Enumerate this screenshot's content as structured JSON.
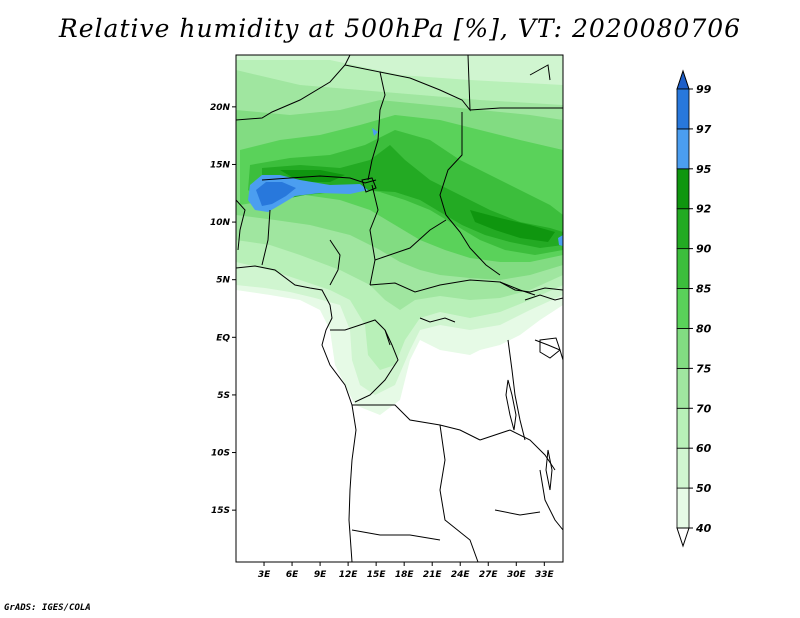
{
  "title": "Relative humidity at 500hPa [%], VT: 2020080706",
  "credit": "GrADS: IGES/COLA",
  "map": {
    "lat_range": [
      -19.5,
      24.5
    ],
    "lon_range": [
      0,
      35
    ],
    "lat_ticks": [
      {
        "value": 20,
        "label": "20N"
      },
      {
        "value": 15,
        "label": "15N"
      },
      {
        "value": 10,
        "label": "10N"
      },
      {
        "value": 5,
        "label": "5N"
      },
      {
        "value": 0,
        "label": "EQ"
      },
      {
        "value": -5,
        "label": "5S"
      },
      {
        "value": -10,
        "label": "10S"
      },
      {
        "value": -15,
        "label": "15S"
      }
    ],
    "lon_ticks": [
      {
        "value": 3,
        "label": "3E"
      },
      {
        "value": 6,
        "label": "6E"
      },
      {
        "value": 9,
        "label": "9E"
      },
      {
        "value": 12,
        "label": "12E"
      },
      {
        "value": 15,
        "label": "15E"
      },
      {
        "value": 18,
        "label": "18E"
      },
      {
        "value": 21,
        "label": "21E"
      },
      {
        "value": 24,
        "label": "24E"
      },
      {
        "value": 27,
        "label": "27E"
      },
      {
        "value": 30,
        "label": "30E"
      },
      {
        "value": 33,
        "label": "33E"
      }
    ]
  },
  "colorbar": {
    "levels": [
      {
        "label": "40",
        "color": "#e6fae6"
      },
      {
        "label": "50",
        "color": "#d0f5d0"
      },
      {
        "label": "60",
        "color": "#b8f0b8"
      },
      {
        "label": "70",
        "color": "#a0e6a0"
      },
      {
        "label": "75",
        "color": "#82dc82"
      },
      {
        "label": "80",
        "color": "#5ad25a"
      },
      {
        "label": "85",
        "color": "#3cbe3c"
      },
      {
        "label": "90",
        "color": "#23aa23"
      },
      {
        "label": "92",
        "color": "#0f960f"
      },
      {
        "label": "95",
        "color": "#4b9ef0"
      },
      {
        "label": "97",
        "color": "#2878dc"
      },
      {
        "label": "99",
        "color": ""
      }
    ],
    "below_color": "#ffffff",
    "above_color": "#1e5fc8"
  }
}
